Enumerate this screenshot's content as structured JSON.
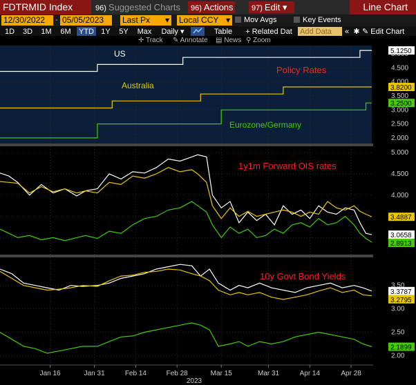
{
  "toolbar": {
    "index": "FDTRMID Index",
    "suggested": {
      "num": "96)",
      "label": "Suggested Charts"
    },
    "actions": {
      "num": "96)",
      "label": "Actions"
    },
    "edit": {
      "num": "97)",
      "label": "Edit"
    },
    "title": "Line Chart"
  },
  "controls": {
    "start_date": "12/30/2022",
    "end_date": "05/05/2023",
    "field": "Last Px",
    "currency": "Local CCY",
    "mov_avgs": "Mov Avgs",
    "key_events": "Key Events",
    "periods": [
      "1D",
      "3D",
      "1M",
      "6M",
      "YTD",
      "1Y",
      "5Y",
      "Max"
    ],
    "selected_period": "YTD",
    "frequency": "Daily",
    "table": "Table",
    "related": "+ Related Dat",
    "add_data": "Add Data",
    "edit_chart": "Edit Chart"
  },
  "tools": {
    "track": "Track",
    "annotate": "Annotate",
    "news": "News",
    "zoom": "Zoom"
  },
  "colors": {
    "us": "#ffffff",
    "australia": "#e8c700",
    "eurozone": "#44cc00",
    "annotation": "#ff2020"
  },
  "chart_data": [
    {
      "type": "line",
      "title": "Policy Rates",
      "ylim": [
        1.8,
        5.3
      ],
      "yticks": [
        "2.000",
        "2.500",
        "3.000",
        "3.500",
        "4.000",
        "4.500",
        "5.000"
      ],
      "series": [
        {
          "name": "US",
          "last": "5.1250",
          "points": [
            [
              0,
              4.375
            ],
            [
              33,
              4.375
            ],
            [
              33,
              4.625
            ],
            [
              62,
              4.625
            ],
            [
              62,
              4.875
            ],
            [
              122,
              4.875
            ],
            [
              122,
              5.125
            ],
            [
              126,
              5.125
            ]
          ]
        },
        {
          "name": "Australia",
          "last": "3.8200",
          "points": [
            [
              0,
              3.07
            ],
            [
              38,
              3.07
            ],
            [
              38,
              3.32
            ],
            [
              68,
              3.32
            ],
            [
              68,
              3.57
            ],
            [
              96,
              3.57
            ],
            [
              96,
              3.82
            ],
            [
              126,
              3.82
            ]
          ]
        },
        {
          "name": "Eurozone/Germany",
          "last": "3.2500",
          "points": [
            [
              0,
              2.0
            ],
            [
              33,
              2.0
            ],
            [
              33,
              2.5
            ],
            [
              75,
              2.5
            ],
            [
              75,
              3.0
            ],
            [
              124,
              3.0
            ],
            [
              124,
              3.25
            ],
            [
              126,
              3.25
            ]
          ]
        }
      ]
    },
    {
      "type": "line",
      "title": "1y1m Forward OIS rates",
      "ylim": [
        2.6,
        5.15
      ],
      "yticks": [
        "3.000",
        "3.500",
        "4.000",
        "4.500",
        "5.000"
      ],
      "series": [
        {
          "name": "US",
          "last": "3.0658",
          "points": [
            [
              0,
              4.52
            ],
            [
              3,
              4.45
            ],
            [
              6,
              4.3
            ],
            [
              10,
              4.0
            ],
            [
              14,
              4.25
            ],
            [
              18,
              4.05
            ],
            [
              22,
              4.15
            ],
            [
              26,
              3.98
            ],
            [
              29,
              4.1
            ],
            [
              33,
              4.15
            ],
            [
              37,
              4.5
            ],
            [
              41,
              4.38
            ],
            [
              45,
              4.55
            ],
            [
              49,
              4.52
            ],
            [
              53,
              4.65
            ],
            [
              57,
              4.85
            ],
            [
              61,
              4.8
            ],
            [
              65,
              4.9
            ],
            [
              67,
              4.95
            ],
            [
              70,
              4.9
            ],
            [
              72,
              4.0
            ],
            [
              75,
              3.7
            ],
            [
              78,
              3.85
            ],
            [
              81,
              3.35
            ],
            [
              84,
              3.6
            ],
            [
              87,
              3.4
            ],
            [
              90,
              3.55
            ],
            [
              93,
              3.3
            ],
            [
              96,
              3.75
            ],
            [
              99,
              3.55
            ],
            [
              102,
              3.65
            ],
            [
              105,
              3.45
            ],
            [
              108,
              3.75
            ],
            [
              111,
              3.6
            ],
            [
              114,
              3.55
            ],
            [
              117,
              3.7
            ],
            [
              120,
              3.65
            ],
            [
              122,
              3.35
            ],
            [
              124,
              3.1
            ],
            [
              126,
              3.07
            ]
          ]
        },
        {
          "name": "Australia",
          "last": "3.4887",
          "points": [
            [
              0,
              4.32
            ],
            [
              3,
              4.3
            ],
            [
              6,
              4.28
            ],
            [
              10,
              4.05
            ],
            [
              14,
              4.2
            ],
            [
              18,
              4.08
            ],
            [
              22,
              4.15
            ],
            [
              26,
              4.05
            ],
            [
              29,
              4.1
            ],
            [
              33,
              4.05
            ],
            [
              37,
              4.3
            ],
            [
              41,
              4.25
            ],
            [
              45,
              4.45
            ],
            [
              49,
              4.4
            ],
            [
              53,
              4.5
            ],
            [
              57,
              4.65
            ],
            [
              61,
              4.55
            ],
            [
              65,
              4.6
            ],
            [
              67,
              4.5
            ],
            [
              70,
              4.3
            ],
            [
              72,
              3.75
            ],
            [
              75,
              3.45
            ],
            [
              78,
              3.7
            ],
            [
              81,
              3.5
            ],
            [
              84,
              3.62
            ],
            [
              87,
              3.5
            ],
            [
              90,
              3.55
            ],
            [
              93,
              3.6
            ],
            [
              96,
              3.65
            ],
            [
              99,
              3.6
            ],
            [
              102,
              3.5
            ],
            [
              105,
              3.6
            ],
            [
              108,
              3.55
            ],
            [
              111,
              3.85
            ],
            [
              114,
              3.7
            ],
            [
              117,
              3.65
            ],
            [
              120,
              3.75
            ],
            [
              122,
              3.62
            ],
            [
              124,
              3.55
            ],
            [
              126,
              3.49
            ]
          ]
        },
        {
          "name": "Eurozone/Germany",
          "last": "2.8913",
          "points": [
            [
              0,
              3.2
            ],
            [
              3,
              3.1
            ],
            [
              6,
              3.0
            ],
            [
              10,
              3.05
            ],
            [
              14,
              2.95
            ],
            [
              18,
              3.0
            ],
            [
              22,
              2.93
            ],
            [
              26,
              3.0
            ],
            [
              29,
              3.05
            ],
            [
              33,
              2.98
            ],
            [
              37,
              3.15
            ],
            [
              41,
              3.1
            ],
            [
              45,
              3.3
            ],
            [
              49,
              3.45
            ],
            [
              53,
              3.5
            ],
            [
              57,
              3.65
            ],
            [
              61,
              3.7
            ],
            [
              65,
              3.85
            ],
            [
              67,
              3.75
            ],
            [
              70,
              3.6
            ],
            [
              72,
              3.3
            ],
            [
              75,
              3.0
            ],
            [
              78,
              3.25
            ],
            [
              81,
              3.1
            ],
            [
              84,
              3.2
            ],
            [
              87,
              3.0
            ],
            [
              90,
              3.05
            ],
            [
              93,
              3.2
            ],
            [
              96,
              3.1
            ],
            [
              99,
              3.3
            ],
            [
              102,
              3.35
            ],
            [
              105,
              3.25
            ],
            [
              108,
              3.45
            ],
            [
              111,
              3.3
            ],
            [
              114,
              3.35
            ],
            [
              117,
              3.5
            ],
            [
              120,
              3.3
            ],
            [
              122,
              3.1
            ],
            [
              124,
              2.98
            ],
            [
              126,
              2.89
            ]
          ]
        }
      ]
    },
    {
      "type": "line",
      "title": "10y Govt Bond Yields",
      "ylim": [
        1.8,
        4.1
      ],
      "yticks": [
        "2.00",
        "2.50",
        "3.00",
        "3.50"
      ],
      "series": [
        {
          "name": "US",
          "last": "3.3787",
          "points": [
            [
              0,
              3.85
            ],
            [
              4,
              3.75
            ],
            [
              8,
              3.55
            ],
            [
              12,
              3.5
            ],
            [
              16,
              3.45
            ],
            [
              20,
              3.4
            ],
            [
              24,
              3.5
            ],
            [
              28,
              3.48
            ],
            [
              33,
              3.5
            ],
            [
              37,
              3.55
            ],
            [
              41,
              3.65
            ],
            [
              45,
              3.7
            ],
            [
              49,
              3.75
            ],
            [
              53,
              3.85
            ],
            [
              57,
              3.9
            ],
            [
              61,
              3.95
            ],
            [
              65,
              3.92
            ],
            [
              68,
              3.7
            ],
            [
              71,
              3.85
            ],
            [
              74,
              3.55
            ],
            [
              78,
              3.4
            ],
            [
              81,
              3.5
            ],
            [
              84,
              3.45
            ],
            [
              88,
              3.55
            ],
            [
              92,
              3.45
            ],
            [
              96,
              3.4
            ],
            [
              100,
              3.35
            ],
            [
              104,
              3.45
            ],
            [
              108,
              3.5
            ],
            [
              112,
              3.55
            ],
            [
              116,
              3.45
            ],
            [
              120,
              3.5
            ],
            [
              123,
              3.45
            ],
            [
              126,
              3.38
            ]
          ]
        },
        {
          "name": "Australia",
          "last": "3.2795",
          "points": [
            [
              0,
              3.8
            ],
            [
              4,
              3.65
            ],
            [
              8,
              3.5
            ],
            [
              12,
              3.45
            ],
            [
              16,
              3.4
            ],
            [
              20,
              3.42
            ],
            [
              24,
              3.45
            ],
            [
              28,
              3.5
            ],
            [
              33,
              3.48
            ],
            [
              37,
              3.6
            ],
            [
              41,
              3.7
            ],
            [
              45,
              3.72
            ],
            [
              49,
              3.78
            ],
            [
              53,
              3.8
            ],
            [
              57,
              3.85
            ],
            [
              61,
              3.83
            ],
            [
              65,
              3.75
            ],
            [
              68,
              3.7
            ],
            [
              71,
              3.6
            ],
            [
              74,
              3.4
            ],
            [
              78,
              3.3
            ],
            [
              81,
              3.35
            ],
            [
              84,
              3.3
            ],
            [
              88,
              3.35
            ],
            [
              92,
              3.25
            ],
            [
              96,
              3.2
            ],
            [
              100,
              3.25
            ],
            [
              104,
              3.3
            ],
            [
              108,
              3.38
            ],
            [
              112,
              3.45
            ],
            [
              116,
              3.35
            ],
            [
              120,
              3.4
            ],
            [
              123,
              3.3
            ],
            [
              126,
              3.28
            ]
          ]
        },
        {
          "name": "Eurozone/Germany",
          "last": "2.1899",
          "points": [
            [
              0,
              2.5
            ],
            [
              4,
              2.35
            ],
            [
              8,
              2.2
            ],
            [
              12,
              2.15
            ],
            [
              16,
              2.05
            ],
            [
              20,
              2.1
            ],
            [
              24,
              2.15
            ],
            [
              28,
              2.2
            ],
            [
              33,
              2.2
            ],
            [
              37,
              2.3
            ],
            [
              41,
              2.4
            ],
            [
              45,
              2.42
            ],
            [
              49,
              2.5
            ],
            [
              53,
              2.55
            ],
            [
              57,
              2.6
            ],
            [
              61,
              2.65
            ],
            [
              65,
              2.7
            ],
            [
              68,
              2.65
            ],
            [
              71,
              2.55
            ],
            [
              74,
              2.2
            ],
            [
              78,
              2.25
            ],
            [
              81,
              2.3
            ],
            [
              84,
              2.2
            ],
            [
              88,
              2.3
            ],
            [
              92,
              2.25
            ],
            [
              96,
              2.3
            ],
            [
              100,
              2.4
            ],
            [
              104,
              2.45
            ],
            [
              108,
              2.5
            ],
            [
              112,
              2.45
            ],
            [
              116,
              2.4
            ],
            [
              120,
              2.35
            ],
            [
              123,
              2.25
            ],
            [
              126,
              2.19
            ]
          ]
        }
      ]
    }
  ],
  "xaxis": {
    "ticks": [
      {
        "label": "Jan 16",
        "day": 17
      },
      {
        "label": "Jan 31",
        "day": 32
      },
      {
        "label": "Feb 14",
        "day": 46
      },
      {
        "label": "Feb 28",
        "day": 60
      },
      {
        "label": "Mar 15",
        "day": 75
      },
      {
        "label": "Mar 31",
        "day": 91
      },
      {
        "label": "Apr 14",
        "day": 105
      },
      {
        "label": "Apr 28",
        "day": 119
      }
    ],
    "year": "2023",
    "range": [
      0,
      126
    ]
  }
}
